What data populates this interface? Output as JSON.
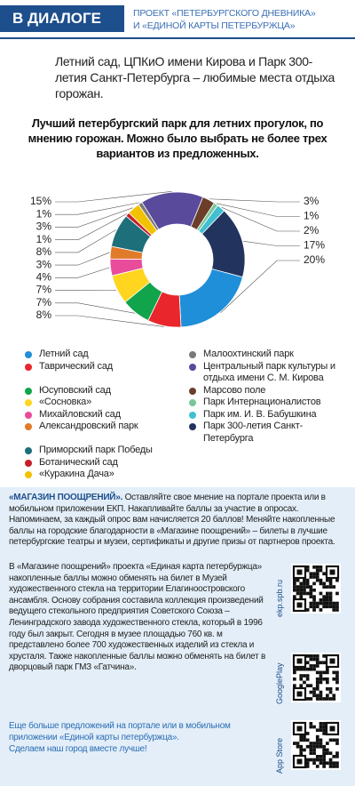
{
  "header": {
    "badge": "В ДИАЛОГЕ",
    "project": [
      "ПРОЕКТ «ПЕТЕРБУРГСКОГО ДНЕВНИКА»",
      "И «ЕДИНОЙ КАРТЫ ПЕТЕРБУРЖЦА»"
    ]
  },
  "intro": "Летний сад, ЦПКиО имени Кирова и Парк 300-летия Санкт-Петербурга – любимые места отдыха горожан.",
  "chart_data": {
    "type": "donut",
    "title": "Лучший петербургский парк для летних прогулок, по мнению горожан. Можно было выбрать не более трех вариантов из предложенных.",
    "categories": [
      "Летний сад",
      "Таврический сад",
      "Юсуповский сад",
      "«Сосновка»",
      "Михайловский сад",
      "Александровский парк",
      "Приморский парк Победы",
      "Ботанический сад",
      "«Куракина Дача»",
      "Малоохтинский парк",
      "Центральный парк культуры и отдыха имени С. М. Кирова",
      "Марсово поле",
      "Парк Интернационалистов",
      "Парк им. И. В. Бабушкина",
      "Парк 300-летия Санкт-Петербурга"
    ],
    "values": [
      20,
      8,
      7,
      7,
      4,
      3,
      8,
      1,
      3,
      1,
      15,
      3,
      1,
      2,
      17
    ],
    "value_labels": [
      "20%",
      "8%",
      "7%",
      "7%",
      "4%",
      "3%",
      "8%",
      "1%",
      "3%",
      "1%",
      "15%",
      "3%",
      "1%",
      "2%",
      "17%"
    ],
    "colors": [
      "#1e8fd8",
      "#e8262b",
      "#12a44a",
      "#ffd520",
      "#e84c9a",
      "#e07b2a",
      "#1d6f7a",
      "#c81f2a",
      "#f2c200",
      "#7a7a7a",
      "#5a4a9c",
      "#6b3e2a",
      "#7cc59a",
      "#40c0d0",
      "#22335e"
    ]
  },
  "footer": {
    "lead": "«МАГАЗИН ПООЩРЕНИЙ».",
    "p1": "Оставляйте свое мнение на портале проекта или в мобильном приложении ЕКП. Накапливайте баллы за участие в опросах. Напоминаем, за каждый опрос вам начисляется 20 баллов! Меняйте накопленные баллы на городские благодарности в «Магазине поощрений» – билеты в лучшие петербургские театры и музеи, сертификаты и другие призы от партнеров проекта.",
    "p2": "В «Магазине поощрений» проекта «Единая карта петербуржца» накопленные баллы можно обменять на билет в Музей художественного стекла на территории Елагиноостровского ансамбля. Основу собрания составила коллекция произведений ведущего стекольного предприятия Советского Союза – Ленинградского завода художественного стекла, который в 1996 году был закрыт. Сегодня в музее площадью 760 кв. м представлено более 700 художественных изделий из стекла и хрусталя. Также накопленные баллы можно обменять на билет в дворцовый парк ГМЗ «Гатчина».",
    "p3": "Еще больше предложений на портале или в мобильном приложении «Единой карты петербуржца».",
    "p4": "Сделаем наш город вместе лучше!",
    "qr_labels": [
      "ekp.spb.ru",
      "GooglePlay",
      "App Store"
    ]
  }
}
